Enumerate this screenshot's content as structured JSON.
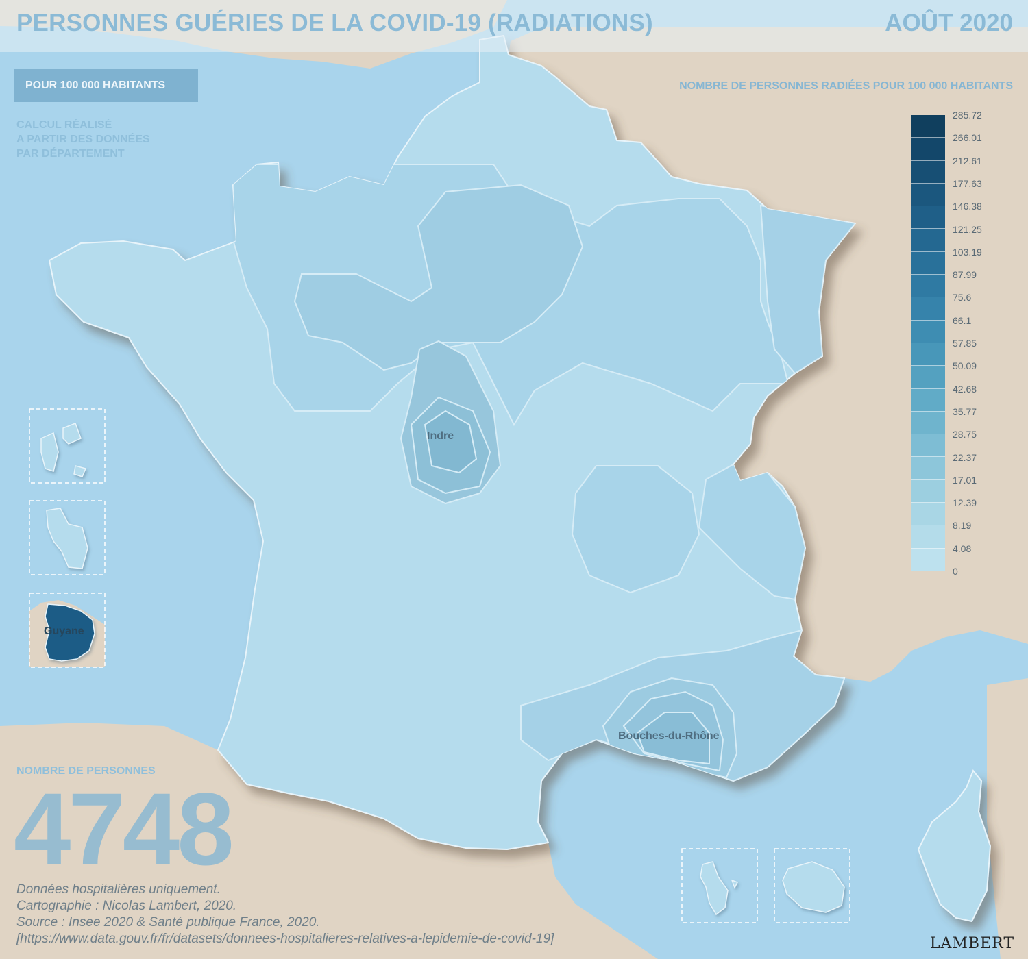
{
  "header": {
    "title": "PERSONNES GUÉRIES DE LA COVID-19 (RADIATIONS)",
    "date": "AOÛT 2020"
  },
  "controls": {
    "mode_label": "POUR 100 000 HABITANTS",
    "calc_note": [
      "CALCUL RÉALISÉ",
      "A PARTIR DES DONNÉES",
      "PAR DÉPARTEMENT"
    ]
  },
  "legend": {
    "title": "NOMBRE DE PERSONNES RADIÉES POUR 100 000 HABITANTS",
    "breaks": [
      "285.72",
      "266.01",
      "212.61",
      "177.63",
      "146.38",
      "121.25",
      "103.19",
      "87.99",
      "75.6",
      "66.1",
      "57.85",
      "50.09",
      "42.68",
      "35.77",
      "28.75",
      "22.37",
      "17.01",
      "12.39",
      "8.19",
      "4.08",
      "0"
    ],
    "colors": [
      "#103f5e",
      "#13476a",
      "#174f74",
      "#1b577e",
      "#1f5f88",
      "#246891",
      "#29719a",
      "#2f7aa3",
      "#3683ab",
      "#3e8db2",
      "#4897b9",
      "#54a1c0",
      "#61abc7",
      "#6fb4cd",
      "#7ebdd4",
      "#8dc6da",
      "#9ccfe0",
      "#a9d6e5",
      "#b4dcea",
      "#bde1ee"
    ]
  },
  "labels": {
    "indre": "Indre",
    "bouches_du_rhone": "Bouches-du-Rhône",
    "guyane": "Guyane"
  },
  "total": {
    "label": "NOMBRE DE PERSONNES",
    "value": "4748"
  },
  "source_lines": [
    "Données hospitalières uniquement.",
    "Cartographie : Nicolas Lambert, 2020.",
    "Source : Insee 2020 & Santé publique France, 2020.",
    "[https://www.data.gouv.fr/fr/datasets/donnees-hospitalieres-relatives-a-lepidemie-de-covid-19]"
  ],
  "signature": "LAMBERT",
  "colors": {
    "sea": "#a9d4ec",
    "land_foreign": "#e0d4c4",
    "france_base": "#b5dced",
    "accent_text": "#8bbad6",
    "guyane_fill": "#1c5c86"
  }
}
